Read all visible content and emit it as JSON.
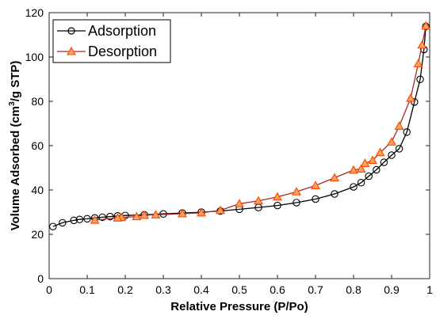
{
  "chart_data": {
    "type": "line",
    "title": "",
    "xlabel": "Relative Pressure (P/Po)",
    "ylabel_parts": {
      "pre": "Volume Adsorbed (cm",
      "sup": "3",
      "post": "/g STP)"
    },
    "xlim": [
      0,
      1
    ],
    "ylim": [
      0,
      120
    ],
    "xticks": [
      0,
      0.1,
      0.2,
      0.3,
      0.4,
      0.5,
      0.6,
      0.7,
      0.8,
      0.9,
      1
    ],
    "xtick_labels": [
      "0",
      "0.1",
      "0.2",
      "0.3",
      "0.4",
      "0.5",
      "0.6",
      "0.7",
      "0.8",
      "0.9",
      "1"
    ],
    "yticks": [
      0,
      20,
      40,
      60,
      80,
      100,
      120
    ],
    "ytick_labels": [
      "0",
      "20",
      "40",
      "60",
      "80",
      "100",
      "120"
    ],
    "grid": false,
    "legend_position": "top-left",
    "series": [
      {
        "name": "Adsorption",
        "marker": "circle",
        "line_color": "#000000",
        "marker_color": "#000000",
        "x": [
          0.01,
          0.035,
          0.065,
          0.08,
          0.1,
          0.12,
          0.14,
          0.16,
          0.18,
          0.2,
          0.25,
          0.3,
          0.35,
          0.4,
          0.45,
          0.5,
          0.55,
          0.6,
          0.65,
          0.7,
          0.75,
          0.8,
          0.82,
          0.84,
          0.86,
          0.88,
          0.9,
          0.92,
          0.94,
          0.96,
          0.975,
          0.985,
          0.99
        ],
        "y": [
          23.5,
          25.2,
          26.3,
          26.7,
          27.0,
          27.4,
          27.7,
          28.0,
          28.3,
          28.5,
          28.8,
          29.2,
          29.6,
          30.0,
          30.5,
          31.3,
          32.1,
          33.0,
          34.3,
          35.9,
          38.2,
          41.4,
          43.3,
          46.2,
          49.1,
          52.5,
          55.7,
          58.6,
          66.1,
          79.7,
          89.9,
          103.4,
          113.8
        ]
      },
      {
        "name": "Desorption",
        "marker": "triangle",
        "line_color": "#A52A2A",
        "marker_color": "#FF4500",
        "marker_fill": "#F4A460",
        "x": [
          0.99,
          0.98,
          0.97,
          0.95,
          0.92,
          0.9,
          0.87,
          0.85,
          0.83,
          0.82,
          0.8,
          0.75,
          0.7,
          0.65,
          0.6,
          0.55,
          0.5,
          0.45,
          0.4,
          0.35,
          0.28,
          0.25,
          0.23,
          0.19,
          0.18,
          0.12
        ],
        "y": [
          114.0,
          105.4,
          97.0,
          81.4,
          68.8,
          61.7,
          56.9,
          53.4,
          52.0,
          49.5,
          49.0,
          45.5,
          42.0,
          39.2,
          36.9,
          35.1,
          33.8,
          30.8,
          29.7,
          29.3,
          28.8,
          28.6,
          28.0,
          27.6,
          27.4,
          26.4
        ]
      }
    ]
  }
}
